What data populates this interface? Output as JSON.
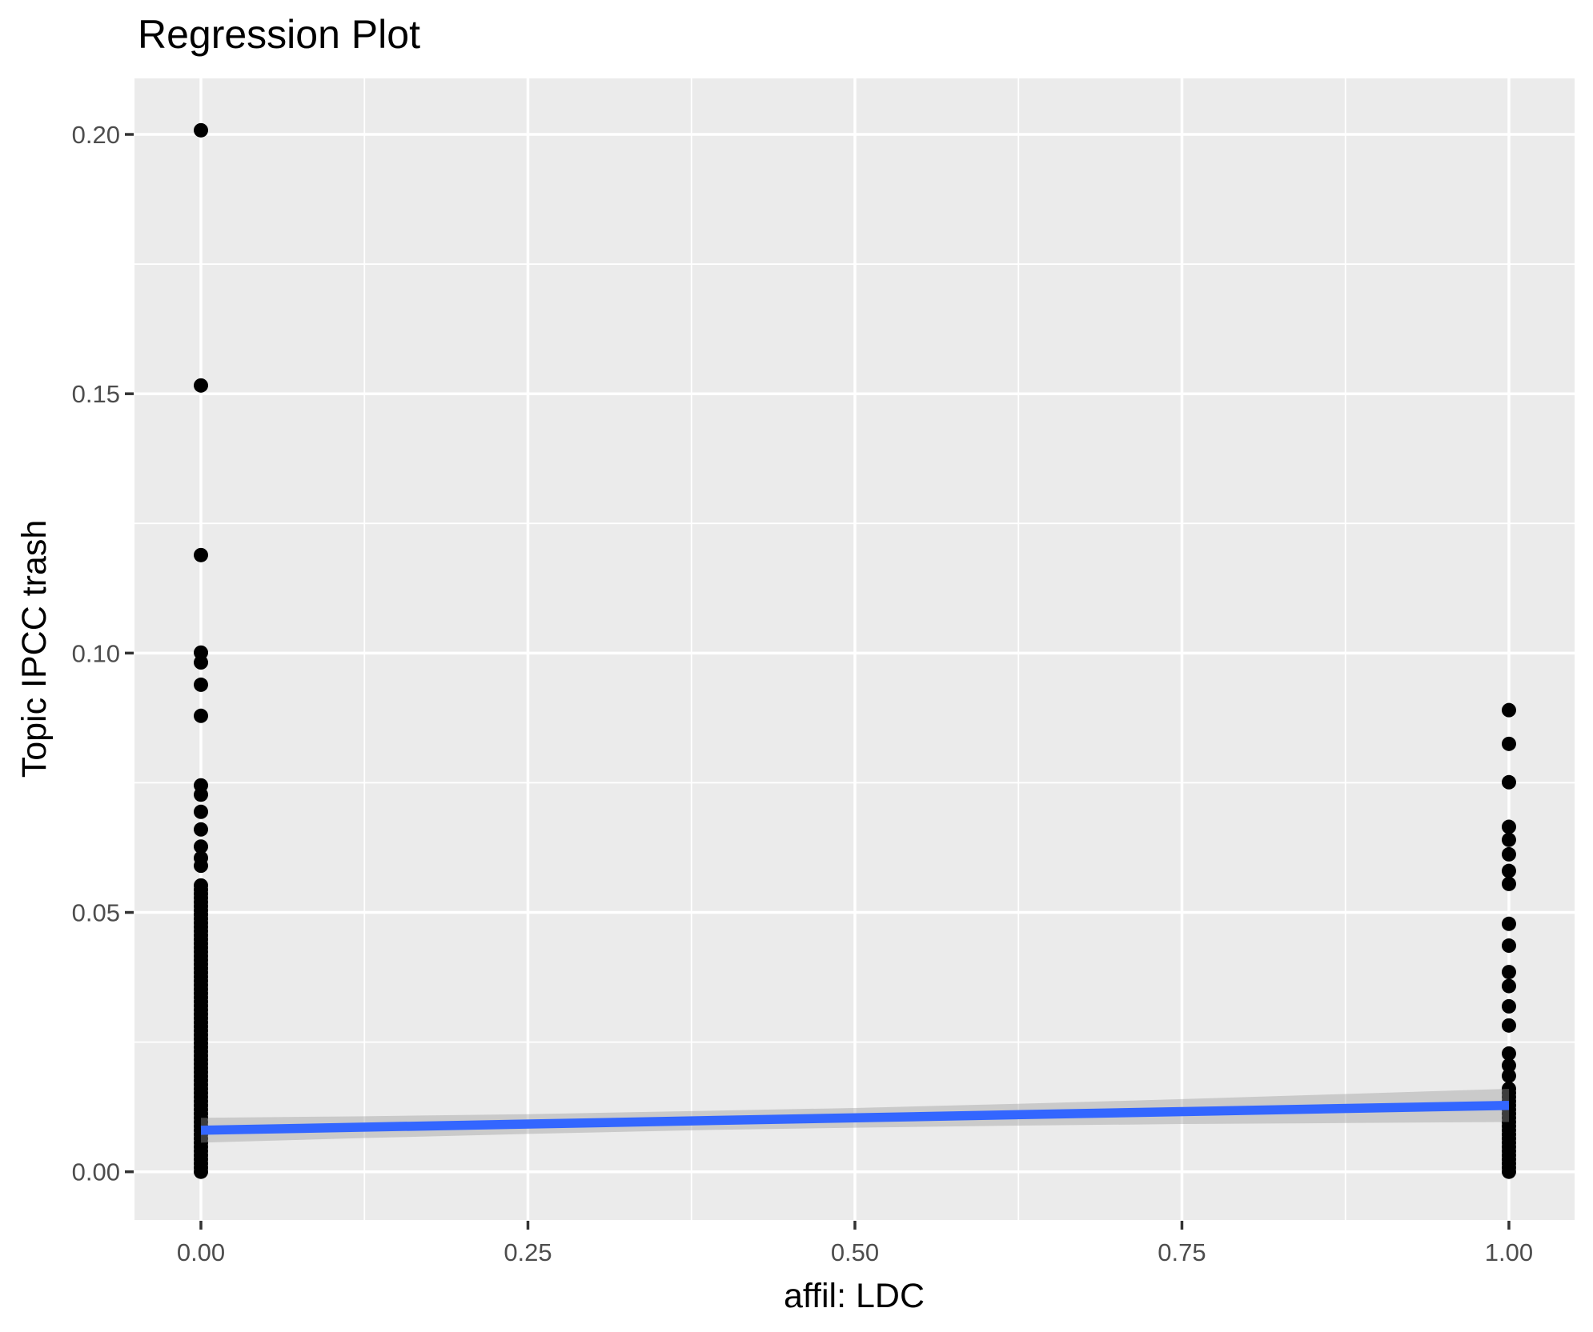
{
  "chart_data": {
    "type": "scatter",
    "title": "Regression Plot",
    "xlabel": "affil: LDC",
    "ylabel": "Topic IPCC trash",
    "x_ticks": {
      "values": [
        0,
        0.25,
        0.5,
        0.75,
        1.0
      ],
      "labels": [
        "0.00",
        "0.25",
        "0.50",
        "0.75",
        "1.00"
      ]
    },
    "y_ticks": {
      "values": [
        0,
        0.05,
        0.1,
        0.15,
        0.2
      ],
      "labels": [
        "0.00",
        "0.05",
        "0.10",
        "0.15",
        "0.20"
      ]
    },
    "xlim": [
      -0.0508,
      1.0502
    ],
    "ylim": [
      -0.0093,
      0.2108
    ],
    "grid": true,
    "legend": "none",
    "series": [
      {
        "name": "affil LDC = 0",
        "x": 0,
        "values": [
          0.0,
          0.0008,
          0.0016,
          0.0024,
          0.0032,
          0.004,
          0.0048,
          0.0056,
          0.0064,
          0.0072,
          0.008,
          0.0088,
          0.0096,
          0.0104,
          0.0112,
          0.012,
          0.0128,
          0.0136,
          0.0144,
          0.0152,
          0.016,
          0.0168,
          0.0176,
          0.0184,
          0.0192,
          0.02,
          0.0208,
          0.0216,
          0.0224,
          0.0232,
          0.024,
          0.0248,
          0.0256,
          0.0264,
          0.0272,
          0.028,
          0.0288,
          0.0296,
          0.0304,
          0.0312,
          0.032,
          0.0328,
          0.0336,
          0.0344,
          0.0352,
          0.036,
          0.0368,
          0.0376,
          0.0384,
          0.0392,
          0.04,
          0.0408,
          0.0416,
          0.0424,
          0.0432,
          0.044,
          0.0448,
          0.0456,
          0.0464,
          0.0472,
          0.048,
          0.0488,
          0.0496,
          0.0504,
          0.0512,
          0.052,
          0.0528,
          0.0536,
          0.0544,
          0.0552,
          0.059,
          0.0605,
          0.0627,
          0.066,
          0.0694,
          0.0727,
          0.0745,
          0.0879,
          0.0939,
          0.0982,
          0.1001,
          0.1189,
          0.1516,
          0.2008
        ]
      },
      {
        "name": "affil LDC = 1",
        "x": 1,
        "values": [
          0.0,
          0.0008,
          0.0016,
          0.0024,
          0.0032,
          0.004,
          0.0048,
          0.0056,
          0.0064,
          0.0072,
          0.008,
          0.0088,
          0.0096,
          0.0104,
          0.0112,
          0.012,
          0.0128,
          0.0136,
          0.0144,
          0.0152,
          0.016,
          0.0185,
          0.0205,
          0.0228,
          0.0282,
          0.0319,
          0.0358,
          0.0385,
          0.0436,
          0.0478,
          0.0555,
          0.058,
          0.0612,
          0.064,
          0.0665,
          0.0751,
          0.0825,
          0.089
        ]
      }
    ],
    "regression_line": {
      "x": [
        0,
        1
      ],
      "y": [
        0.008,
        0.0128
      ]
    },
    "confidence_band": {
      "x": [
        0,
        0.125,
        0.25,
        0.375,
        0.5,
        0.625,
        0.75,
        0.875,
        1.0
      ],
      "upper": [
        0.0104,
        0.0107,
        0.0111,
        0.0117,
        0.0123,
        0.0131,
        0.014,
        0.015,
        0.016
      ],
      "lower": [
        0.0056,
        0.0065,
        0.0073,
        0.008,
        0.0085,
        0.0089,
        0.0092,
        0.0094,
        0.0096
      ]
    },
    "colors": {
      "panel_background": "#EBEBEB",
      "gridline": "#FFFFFF",
      "point": "#000000",
      "regression_line": "#3366FF",
      "confidence_band": "#999999",
      "confidence_band_opacity": 0.4,
      "tick_label": "#4D4D4D",
      "tick_mark": "#333333",
      "axis_title": "#000000",
      "plot_title": "#000000"
    }
  }
}
